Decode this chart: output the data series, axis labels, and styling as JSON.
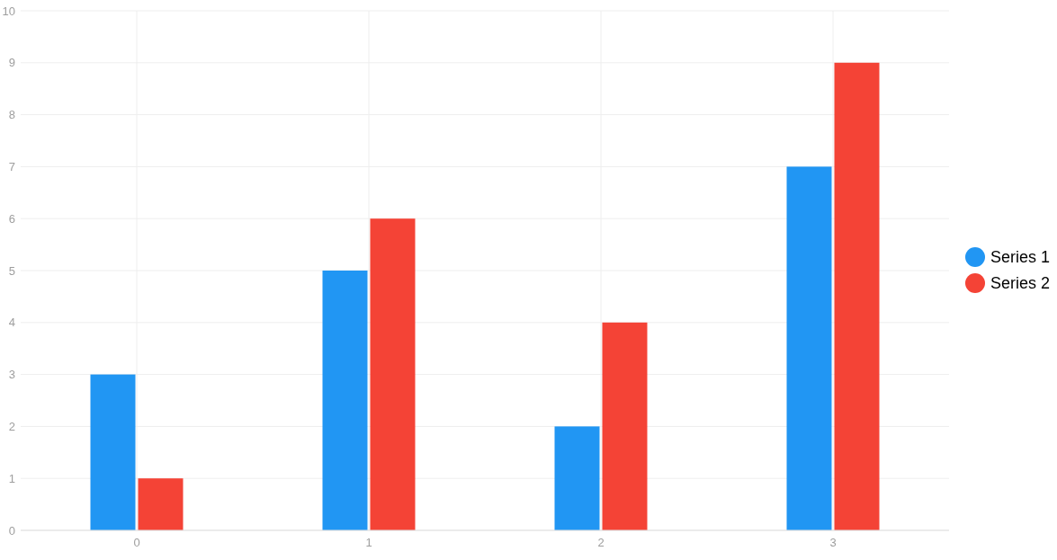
{
  "chart_data": {
    "type": "bar",
    "categories": [
      "0",
      "1",
      "2",
      "3"
    ],
    "series": [
      {
        "name": "Series 1",
        "color": "#2196f3",
        "values": [
          3,
          5,
          2,
          7
        ]
      },
      {
        "name": "Series 2",
        "color": "#f44336",
        "values": [
          1,
          6,
          4,
          9
        ]
      }
    ],
    "ylim": [
      0,
      10
    ],
    "yticks": [
      0,
      1,
      2,
      3,
      4,
      5,
      6,
      7,
      8,
      9,
      10
    ],
    "grid": true,
    "legend": "right"
  }
}
